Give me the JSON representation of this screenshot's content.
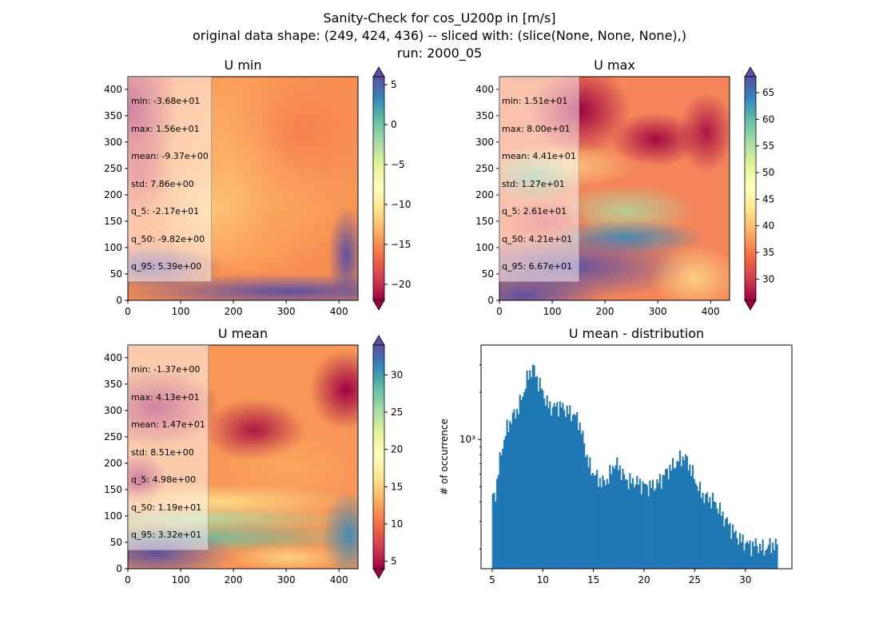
{
  "figure": {
    "title_lines": [
      "Sanity-Check for cos_U200p in [m/s]",
      "original data shape: (249, 424, 436) -- sliced with: (slice(None, None, None),)",
      "run: 2000_05"
    ]
  },
  "panels": [
    {
      "title": "U min",
      "xticks": [
        "0",
        "100",
        "200",
        "300",
        "400"
      ],
      "yticks": [
        "0",
        "50",
        "100",
        "150",
        "200",
        "250",
        "300",
        "350",
        "400"
      ],
      "colorbar_ticks": [
        "5",
        "0",
        "−5",
        "−10",
        "−15",
        "−20"
      ],
      "colorbar_range": [
        -22,
        6
      ],
      "stats": [
        "min: -3.68e+01",
        "max: 1.56e+01",
        "mean: -9.37e+00",
        "std: 7.86e+00",
        "q_5: -2.17e+01",
        "q_50: -9.82e+00",
        "q_95: 5.39e+00"
      ]
    },
    {
      "title": "U max",
      "xticks": [
        "0",
        "100",
        "200",
        "300",
        "400"
      ],
      "yticks": [
        "0",
        "50",
        "100",
        "150",
        "200",
        "250",
        "300",
        "350",
        "400"
      ],
      "colorbar_ticks": [
        "65",
        "60",
        "55",
        "50",
        "45",
        "40",
        "35",
        "30"
      ],
      "colorbar_range": [
        26,
        68
      ],
      "stats": [
        "min: 1.51e+01",
        "max: 8.00e+01",
        "mean: 4.41e+01",
        "std: 1.27e+01",
        "q_5: 2.61e+01",
        "q_50: 4.21e+01",
        "q_95: 6.67e+01"
      ]
    },
    {
      "title": "U mean",
      "xticks": [
        "0",
        "100",
        "200",
        "300",
        "400"
      ],
      "yticks": [
        "0",
        "50",
        "100",
        "150",
        "200",
        "250",
        "300",
        "350",
        "400"
      ],
      "colorbar_ticks": [
        "30",
        "25",
        "20",
        "15",
        "10",
        "5"
      ],
      "colorbar_range": [
        4,
        34
      ],
      "stats": [
        "min: -1.37e+00",
        "max: 4.13e+01",
        "mean: 1.47e+01",
        "std: 8.51e+00",
        "q_5: 4.98e+00",
        "q_50: 1.19e+01",
        "q_95: 3.32e+01"
      ]
    }
  ],
  "colormap_stops": [
    "#9e0142",
    "#d53e4f",
    "#f46d43",
    "#fdae61",
    "#fee08b",
    "#ffffbf",
    "#e6f598",
    "#abdda4",
    "#66c2a5",
    "#3288bd",
    "#5e4fa2"
  ],
  "chart_data": {
    "type": "bar",
    "title": "U mean - distribution",
    "xlabel": "",
    "ylabel": "# of occurrence",
    "yscale": "log",
    "xlim": [
      3.9,
      34.6
    ],
    "ylim": [
      150,
      4000
    ],
    "xticks": [
      5,
      10,
      15,
      20,
      25,
      30
    ],
    "ytick_label": "10³",
    "bar_color": "#1f77b4",
    "bin_range": [
      4.98,
      33.2
    ],
    "anchors": [
      [
        4.98,
        420
      ],
      [
        5.3,
        440
      ],
      [
        5.7,
        700
      ],
      [
        6.0,
        900
      ],
      [
        6.5,
        1200
      ],
      [
        7.0,
        1400
      ],
      [
        7.5,
        1550
      ],
      [
        8.0,
        1900
      ],
      [
        8.5,
        2500
      ],
      [
        9.0,
        2900
      ],
      [
        9.5,
        2400
      ],
      [
        10.0,
        2000
      ],
      [
        10.5,
        1650
      ],
      [
        11.0,
        1600
      ],
      [
        11.5,
        1650
      ],
      [
        12.0,
        1600
      ],
      [
        12.5,
        1500
      ],
      [
        13.0,
        1450
      ],
      [
        13.5,
        1350
      ],
      [
        14.0,
        1000
      ],
      [
        14.5,
        700
      ],
      [
        15.0,
        610
      ],
      [
        15.5,
        560
      ],
      [
        16.0,
        530
      ],
      [
        16.5,
        570
      ],
      [
        17.0,
        700
      ],
      [
        17.5,
        680
      ],
      [
        18.0,
        580
      ],
      [
        18.5,
        540
      ],
      [
        19.0,
        540
      ],
      [
        19.5,
        530
      ],
      [
        20.0,
        510
      ],
      [
        20.5,
        500
      ],
      [
        21.0,
        510
      ],
      [
        21.5,
        540
      ],
      [
        22.0,
        600
      ],
      [
        22.5,
        650
      ],
      [
        23.0,
        690
      ],
      [
        23.5,
        750
      ],
      [
        24.0,
        780
      ],
      [
        24.5,
        680
      ],
      [
        25.0,
        560
      ],
      [
        25.5,
        470
      ],
      [
        26.0,
        430
      ],
      [
        26.5,
        420
      ],
      [
        27.0,
        400
      ],
      [
        27.5,
        350
      ],
      [
        28.0,
        310
      ],
      [
        28.5,
        280
      ],
      [
        29.0,
        250
      ],
      [
        29.5,
        230
      ],
      [
        30.0,
        220
      ],
      [
        30.5,
        210
      ],
      [
        31.0,
        215
      ],
      [
        31.5,
        205
      ],
      [
        32.0,
        200
      ],
      [
        32.5,
        215
      ],
      [
        33.2,
        210
      ]
    ]
  }
}
